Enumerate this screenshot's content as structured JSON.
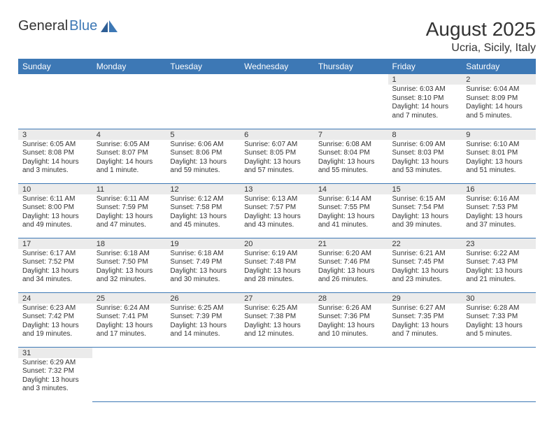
{
  "brand": {
    "text1": "General",
    "text2": "Blue"
  },
  "title": "August 2025",
  "location": "Ucria, Sicily, Italy",
  "colors": {
    "header_bg": "#3d78b5",
    "header_text": "#ffffff",
    "daynum_bg": "#ebebeb",
    "border": "#3d78b5",
    "text": "#333333",
    "background": "#ffffff"
  },
  "weekdays": [
    "Sunday",
    "Monday",
    "Tuesday",
    "Wednesday",
    "Thursday",
    "Friday",
    "Saturday"
  ],
  "weeks": [
    [
      null,
      null,
      null,
      null,
      null,
      {
        "d": "1",
        "sr": "Sunrise: 6:03 AM",
        "ss": "Sunset: 8:10 PM",
        "dl1": "Daylight: 14 hours",
        "dl2": "and 7 minutes."
      },
      {
        "d": "2",
        "sr": "Sunrise: 6:04 AM",
        "ss": "Sunset: 8:09 PM",
        "dl1": "Daylight: 14 hours",
        "dl2": "and 5 minutes."
      }
    ],
    [
      {
        "d": "3",
        "sr": "Sunrise: 6:05 AM",
        "ss": "Sunset: 8:08 PM",
        "dl1": "Daylight: 14 hours",
        "dl2": "and 3 minutes."
      },
      {
        "d": "4",
        "sr": "Sunrise: 6:05 AM",
        "ss": "Sunset: 8:07 PM",
        "dl1": "Daylight: 14 hours",
        "dl2": "and 1 minute."
      },
      {
        "d": "5",
        "sr": "Sunrise: 6:06 AM",
        "ss": "Sunset: 8:06 PM",
        "dl1": "Daylight: 13 hours",
        "dl2": "and 59 minutes."
      },
      {
        "d": "6",
        "sr": "Sunrise: 6:07 AM",
        "ss": "Sunset: 8:05 PM",
        "dl1": "Daylight: 13 hours",
        "dl2": "and 57 minutes."
      },
      {
        "d": "7",
        "sr": "Sunrise: 6:08 AM",
        "ss": "Sunset: 8:04 PM",
        "dl1": "Daylight: 13 hours",
        "dl2": "and 55 minutes."
      },
      {
        "d": "8",
        "sr": "Sunrise: 6:09 AM",
        "ss": "Sunset: 8:03 PM",
        "dl1": "Daylight: 13 hours",
        "dl2": "and 53 minutes."
      },
      {
        "d": "9",
        "sr": "Sunrise: 6:10 AM",
        "ss": "Sunset: 8:01 PM",
        "dl1": "Daylight: 13 hours",
        "dl2": "and 51 minutes."
      }
    ],
    [
      {
        "d": "10",
        "sr": "Sunrise: 6:11 AM",
        "ss": "Sunset: 8:00 PM",
        "dl1": "Daylight: 13 hours",
        "dl2": "and 49 minutes."
      },
      {
        "d": "11",
        "sr": "Sunrise: 6:11 AM",
        "ss": "Sunset: 7:59 PM",
        "dl1": "Daylight: 13 hours",
        "dl2": "and 47 minutes."
      },
      {
        "d": "12",
        "sr": "Sunrise: 6:12 AM",
        "ss": "Sunset: 7:58 PM",
        "dl1": "Daylight: 13 hours",
        "dl2": "and 45 minutes."
      },
      {
        "d": "13",
        "sr": "Sunrise: 6:13 AM",
        "ss": "Sunset: 7:57 PM",
        "dl1": "Daylight: 13 hours",
        "dl2": "and 43 minutes."
      },
      {
        "d": "14",
        "sr": "Sunrise: 6:14 AM",
        "ss": "Sunset: 7:55 PM",
        "dl1": "Daylight: 13 hours",
        "dl2": "and 41 minutes."
      },
      {
        "d": "15",
        "sr": "Sunrise: 6:15 AM",
        "ss": "Sunset: 7:54 PM",
        "dl1": "Daylight: 13 hours",
        "dl2": "and 39 minutes."
      },
      {
        "d": "16",
        "sr": "Sunrise: 6:16 AM",
        "ss": "Sunset: 7:53 PM",
        "dl1": "Daylight: 13 hours",
        "dl2": "and 37 minutes."
      }
    ],
    [
      {
        "d": "17",
        "sr": "Sunrise: 6:17 AM",
        "ss": "Sunset: 7:52 PM",
        "dl1": "Daylight: 13 hours",
        "dl2": "and 34 minutes."
      },
      {
        "d": "18",
        "sr": "Sunrise: 6:18 AM",
        "ss": "Sunset: 7:50 PM",
        "dl1": "Daylight: 13 hours",
        "dl2": "and 32 minutes."
      },
      {
        "d": "19",
        "sr": "Sunrise: 6:18 AM",
        "ss": "Sunset: 7:49 PM",
        "dl1": "Daylight: 13 hours",
        "dl2": "and 30 minutes."
      },
      {
        "d": "20",
        "sr": "Sunrise: 6:19 AM",
        "ss": "Sunset: 7:48 PM",
        "dl1": "Daylight: 13 hours",
        "dl2": "and 28 minutes."
      },
      {
        "d": "21",
        "sr": "Sunrise: 6:20 AM",
        "ss": "Sunset: 7:46 PM",
        "dl1": "Daylight: 13 hours",
        "dl2": "and 26 minutes."
      },
      {
        "d": "22",
        "sr": "Sunrise: 6:21 AM",
        "ss": "Sunset: 7:45 PM",
        "dl1": "Daylight: 13 hours",
        "dl2": "and 23 minutes."
      },
      {
        "d": "23",
        "sr": "Sunrise: 6:22 AM",
        "ss": "Sunset: 7:43 PM",
        "dl1": "Daylight: 13 hours",
        "dl2": "and 21 minutes."
      }
    ],
    [
      {
        "d": "24",
        "sr": "Sunrise: 6:23 AM",
        "ss": "Sunset: 7:42 PM",
        "dl1": "Daylight: 13 hours",
        "dl2": "and 19 minutes."
      },
      {
        "d": "25",
        "sr": "Sunrise: 6:24 AM",
        "ss": "Sunset: 7:41 PM",
        "dl1": "Daylight: 13 hours",
        "dl2": "and 17 minutes."
      },
      {
        "d": "26",
        "sr": "Sunrise: 6:25 AM",
        "ss": "Sunset: 7:39 PM",
        "dl1": "Daylight: 13 hours",
        "dl2": "and 14 minutes."
      },
      {
        "d": "27",
        "sr": "Sunrise: 6:25 AM",
        "ss": "Sunset: 7:38 PM",
        "dl1": "Daylight: 13 hours",
        "dl2": "and 12 minutes."
      },
      {
        "d": "28",
        "sr": "Sunrise: 6:26 AM",
        "ss": "Sunset: 7:36 PM",
        "dl1": "Daylight: 13 hours",
        "dl2": "and 10 minutes."
      },
      {
        "d": "29",
        "sr": "Sunrise: 6:27 AM",
        "ss": "Sunset: 7:35 PM",
        "dl1": "Daylight: 13 hours",
        "dl2": "and 7 minutes."
      },
      {
        "d": "30",
        "sr": "Sunrise: 6:28 AM",
        "ss": "Sunset: 7:33 PM",
        "dl1": "Daylight: 13 hours",
        "dl2": "and 5 minutes."
      }
    ],
    [
      {
        "d": "31",
        "sr": "Sunrise: 6:29 AM",
        "ss": "Sunset: 7:32 PM",
        "dl1": "Daylight: 13 hours",
        "dl2": "and 3 minutes."
      },
      null,
      null,
      null,
      null,
      null,
      null
    ]
  ]
}
